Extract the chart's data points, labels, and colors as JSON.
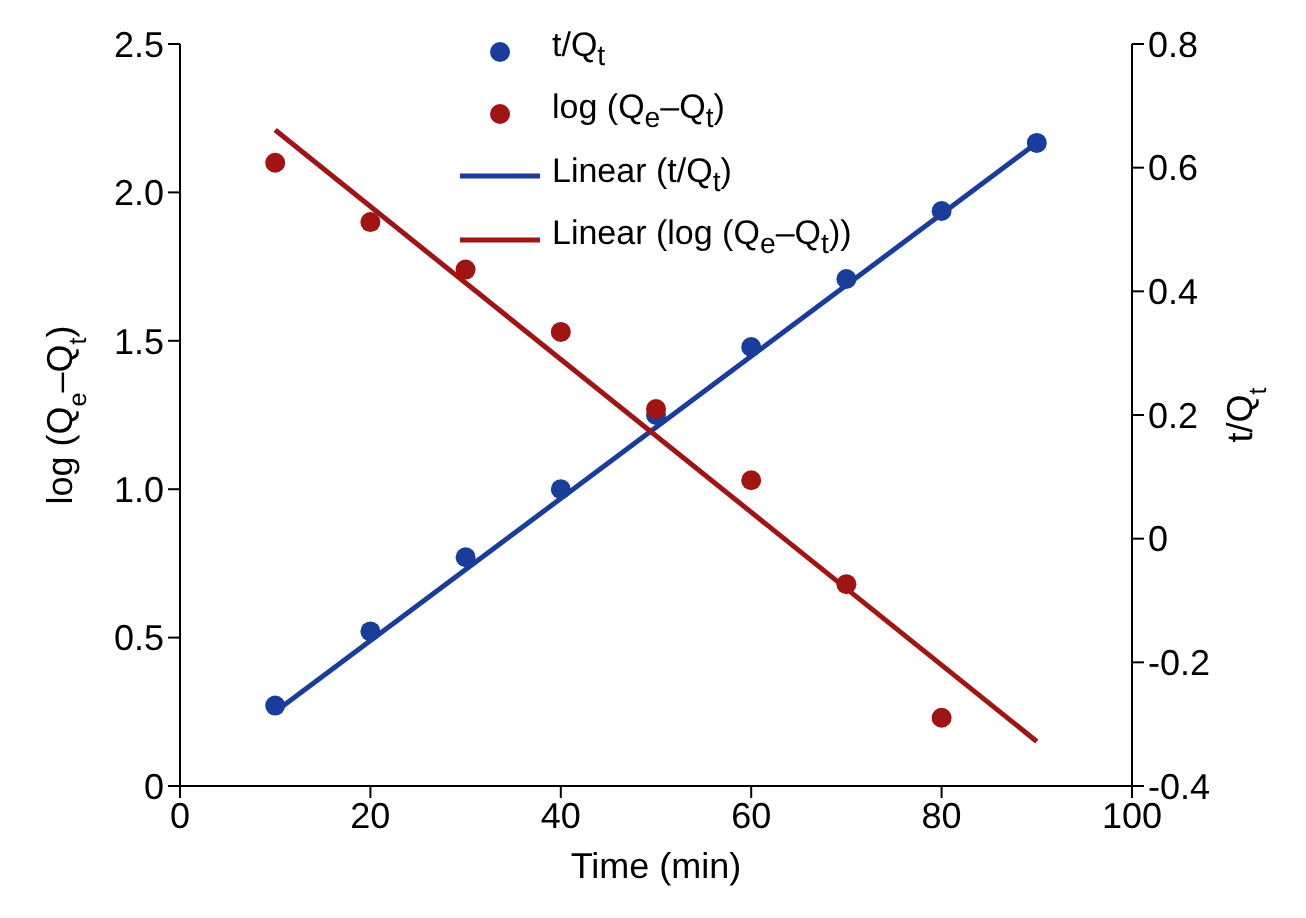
{
  "chart_data": {
    "type": "scatter",
    "xlabel": "Time (min)",
    "ylabel": "log (Q$_{e}$–Q$_{t}$)",
    "y2label": "t/Q$_{t}$",
    "xlim": [
      0,
      100
    ],
    "xticks": [
      0,
      20,
      40,
      60,
      80,
      100
    ],
    "ylim": [
      0,
      2.5
    ],
    "yticks": [
      {
        "value": 0,
        "label": "0"
      },
      {
        "value": 0.5,
        "label": "0.5"
      },
      {
        "value": 1,
        "label": "1.0"
      },
      {
        "value": 1.5,
        "label": "1.5"
      },
      {
        "value": 2,
        "label": "2.0"
      },
      {
        "value": 2.5,
        "label": "2.5"
      }
    ],
    "y2lim": [
      -0.4,
      0.8
    ],
    "y2ticks": [
      -0.4,
      -0.2,
      0,
      0.2,
      0.4,
      0.6,
      0.8
    ],
    "legend": "top",
    "marker": "circle",
    "series": [
      {
        "name": "t/Q$_{t}$",
        "axis": "y2",
        "color": "#1a3d9c",
        "x": [
          10,
          20,
          30,
          40,
          50,
          60,
          70,
          80,
          90
        ],
        "values": [
          -0.27,
          -0.15,
          -0.03,
          0.08,
          0.2,
          0.31,
          0.42,
          0.53,
          0.64
        ]
      },
      {
        "name": "log (Q$_{e}$–Q$_{t}$)",
        "color": "#a01414",
        "x": [
          10,
          20,
          30,
          40,
          50,
          60,
          70,
          80
        ],
        "values": [
          2.1,
          1.9,
          1.74,
          1.53,
          1.27,
          1.03,
          0.68,
          0.23
        ]
      },
      {
        "name": "Linear (t/Q$_{t}$)",
        "type": "line",
        "axis": "y2",
        "color": "#1a3d9c",
        "marker": "none",
        "line_style": "solid",
        "x": [
          10,
          90
        ],
        "values": [
          -0.28,
          0.64
        ]
      },
      {
        "name": "Linear (log (Q$_{e}$–Q$_{t}$))",
        "type": "line",
        "color": "#a01414",
        "marker": "none",
        "line_style": "solid",
        "x": [
          10,
          90
        ],
        "values": [
          2.21,
          0.15
        ]
      }
    ]
  }
}
